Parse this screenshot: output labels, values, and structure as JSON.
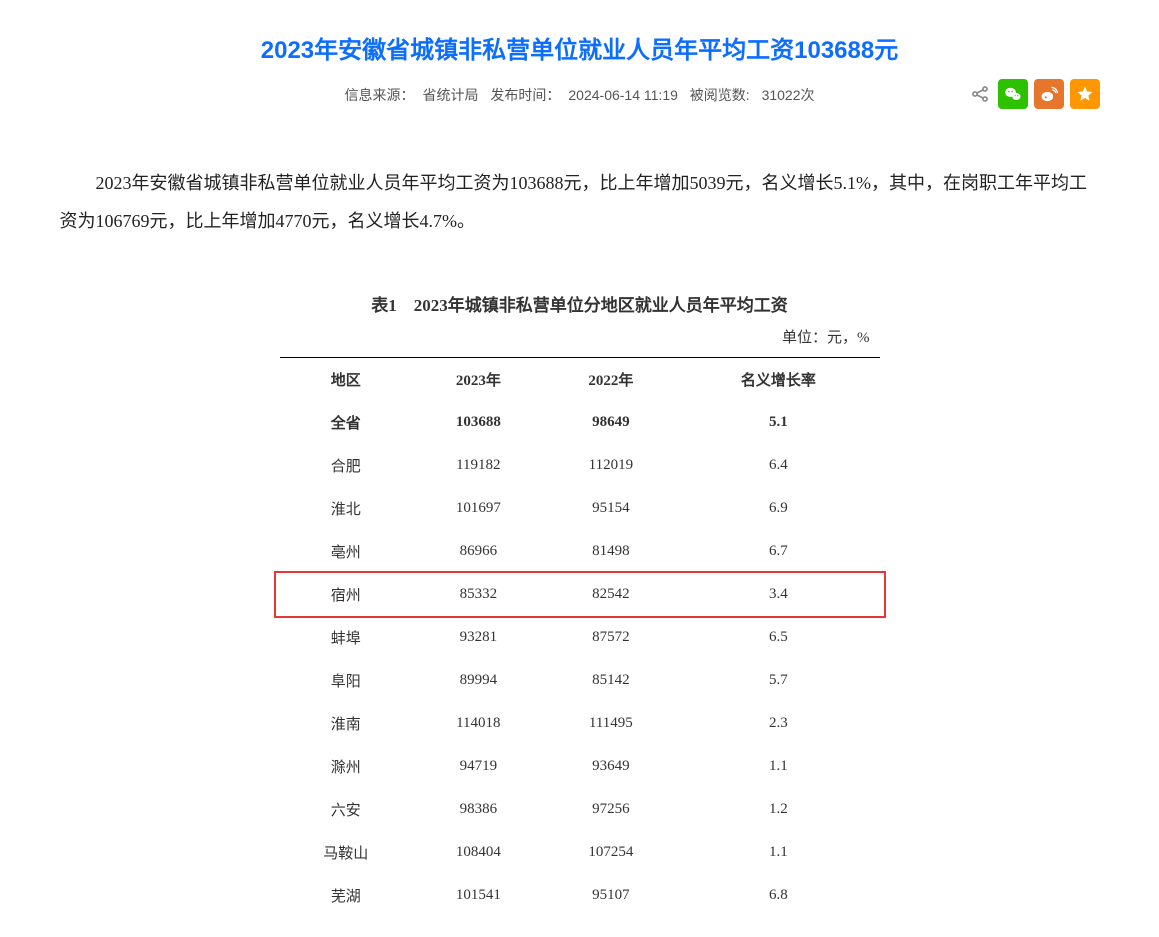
{
  "header": {
    "title": "2023年安徽省城镇非私营单位就业人员年平均工资103688元",
    "source_label": "信息来源：",
    "source_value": "省统计局",
    "publish_label": "发布时间：",
    "publish_value": "2024-06-14 11:19",
    "views_label": "被阅览数:",
    "views_value": "31022次"
  },
  "share": {
    "share_icon_name": "share-icon",
    "wechat_color": "#2dc100",
    "weibo_color": "#e6762b",
    "favorite_color": "#ff9800"
  },
  "body": {
    "paragraph": "2023年安徽省城镇非私营单位就业人员年平均工资为103688元，比上年增加5039元，名义增长5.1%，其中，在岗职工年平均工资为106769元，比上年增加4770元，名义增长4.7%。"
  },
  "table": {
    "title": "表1　2023年城镇非私营单位分地区就业人员年平均工资",
    "unit": "单位：元，%",
    "columns": [
      "地区",
      "2023年",
      "2022年",
      "名义增长率"
    ],
    "col_widths": [
      "25%",
      "25%",
      "25%",
      "25%"
    ],
    "rows": [
      {
        "cells": [
          "全省",
          "103688",
          "98649",
          "5.1"
        ],
        "bold": true
      },
      {
        "cells": [
          "合肥",
          "119182",
          "112019",
          "6.4"
        ],
        "bold": false
      },
      {
        "cells": [
          "淮北",
          "101697",
          "95154",
          "6.9"
        ],
        "bold": false
      },
      {
        "cells": [
          "亳州",
          "86966",
          "81498",
          "6.7"
        ],
        "bold": false
      },
      {
        "cells": [
          "宿州",
          "85332",
          "82542",
          "3.4"
        ],
        "bold": false,
        "highlight": true
      },
      {
        "cells": [
          "蚌埠",
          "93281",
          "87572",
          "6.5"
        ],
        "bold": false
      },
      {
        "cells": [
          "阜阳",
          "89994",
          "85142",
          "5.7"
        ],
        "bold": false
      },
      {
        "cells": [
          "淮南",
          "114018",
          "111495",
          "2.3"
        ],
        "bold": false
      },
      {
        "cells": [
          "滁州",
          "94719",
          "93649",
          "1.1"
        ],
        "bold": false
      },
      {
        "cells": [
          "六安",
          "98386",
          "97256",
          "1.2"
        ],
        "bold": false
      },
      {
        "cells": [
          "马鞍山",
          "108404",
          "107254",
          "1.1"
        ],
        "bold": false
      },
      {
        "cells": [
          "芜湖",
          "101541",
          "95107",
          "6.8"
        ],
        "bold": false
      }
    ],
    "highlight_color": "#e53935"
  }
}
